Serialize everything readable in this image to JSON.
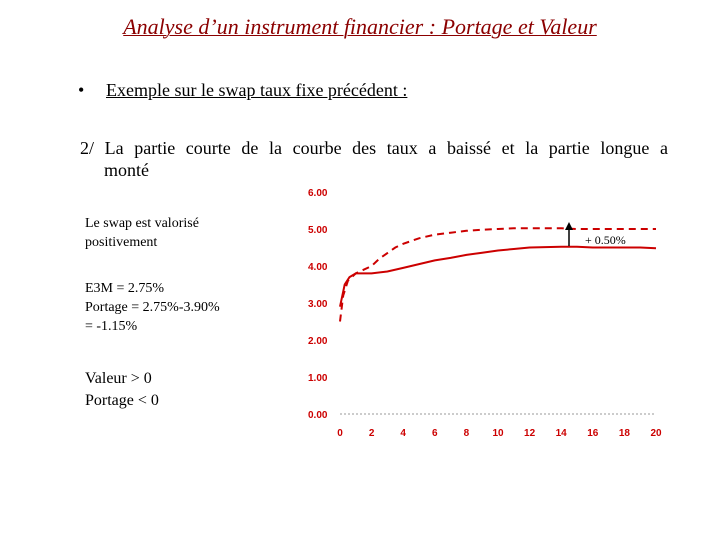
{
  "slide": {
    "title": "Analyse d’un instrument financier : Portage et Valeur",
    "bullet": "Exemple sur le swap taux fixe précédent :",
    "section_line1": "2/ La partie courte de la courbe des taux a baissé et la partie longue a",
    "section_line2": "monté",
    "note_valorise_1": "Le swap est valorisé",
    "note_valorise_2": "positivement",
    "note_e3m": "E3M = 2.75%",
    "note_portage_calc": "Portage = 2.75%-3.90%",
    "note_portage_result": "= -1.15%",
    "note_valeur": "Valeur > 0",
    "note_portage": "Portage < 0"
  },
  "colors": {
    "title": "#8b0000",
    "curve": "#cc0000",
    "axis_text": "#cc0000"
  },
  "chart_data": {
    "type": "line",
    "title": "",
    "xlabel": "",
    "ylabel": "",
    "x_ticks": [
      "0",
      "2",
      "4",
      "6",
      "8",
      "10",
      "12",
      "14",
      "16",
      "18",
      "20"
    ],
    "y_ticks": [
      "0.00",
      "1.00",
      "2.00",
      "3.00",
      "4.00",
      "5.00",
      "6.00"
    ],
    "xlim": [
      0,
      20
    ],
    "ylim": [
      0,
      6
    ],
    "grid": false,
    "annotation": "+ 0.50%",
    "series": [
      {
        "style": "solid",
        "x": [
          0,
          0.3,
          0.6,
          1,
          1.5,
          2,
          3,
          4,
          5,
          6,
          7,
          8,
          9,
          10,
          11,
          12,
          13,
          14,
          15,
          16,
          17,
          18,
          19,
          20
        ],
        "y": [
          2.9,
          3.5,
          3.7,
          3.8,
          3.8,
          3.8,
          3.85,
          3.95,
          4.05,
          4.15,
          4.22,
          4.3,
          4.36,
          4.42,
          4.46,
          4.5,
          4.51,
          4.52,
          4.52,
          4.5,
          4.5,
          4.5,
          4.5,
          4.48
        ]
      },
      {
        "style": "dashed",
        "x": [
          0,
          0.2,
          0.5,
          1,
          1.5,
          2,
          2.5,
          3,
          3.5,
          4,
          5,
          6,
          7,
          8,
          9,
          10,
          11,
          12,
          13,
          14,
          15,
          16,
          17,
          18,
          19,
          20
        ],
        "y": [
          2.5,
          3.2,
          3.6,
          3.8,
          3.9,
          4.0,
          4.2,
          4.35,
          4.5,
          4.6,
          4.75,
          4.85,
          4.9,
          4.95,
          4.98,
          5.0,
          5.02,
          5.02,
          5.02,
          5.02,
          5.0,
          5.0,
          5.0,
          5.0,
          5.0,
          5.0
        ]
      }
    ]
  }
}
